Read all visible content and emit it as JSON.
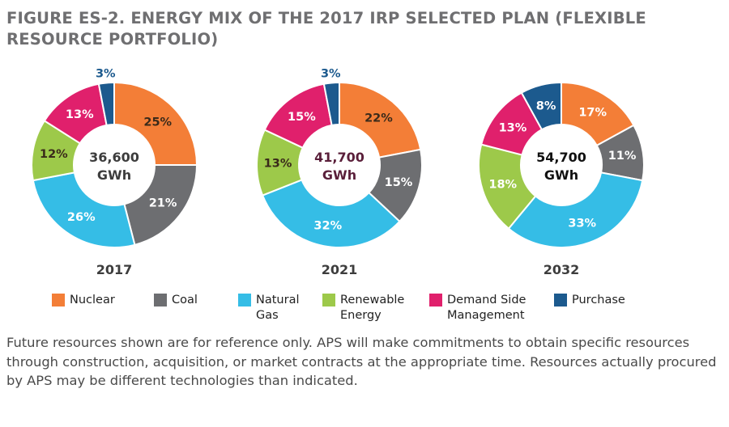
{
  "title": "FIGURE ES-2. ENERGY MIX OF THE 2017 IRP SELECTED PLAN (FLEXIBLE RESOURCE PORTFOLIO)",
  "colors": {
    "nuclear": "#f37e37",
    "coal": "#6d6e71",
    "gas": "#35bde6",
    "renewable": "#9dc94a",
    "dsm": "#e0206c",
    "purchase": "#1c5a8e"
  },
  "chart_data": [
    {
      "type": "pie",
      "title": "2017",
      "center_value": "36,600",
      "center_unit": "GWh",
      "categories": [
        "Nuclear",
        "Coal",
        "Natural Gas",
        "Renewable Energy",
        "Demand Side Management",
        "Purchase"
      ],
      "values": [
        25,
        21,
        26,
        12,
        13,
        3
      ],
      "labels": [
        "25%",
        "21%",
        "26%",
        "12%",
        "13%",
        "3%"
      ]
    },
    {
      "type": "pie",
      "title": "2021",
      "center_value": "41,700",
      "center_unit": "GWh",
      "categories": [
        "Nuclear",
        "Coal",
        "Natural Gas",
        "Renewable Energy",
        "Demand Side Management",
        "Purchase"
      ],
      "values": [
        22,
        15,
        32,
        13,
        15,
        3
      ],
      "labels": [
        "22%",
        "15%",
        "32%",
        "13%",
        "15%",
        "3%"
      ]
    },
    {
      "type": "pie",
      "title": "2032",
      "center_value": "54,700",
      "center_unit": "GWh",
      "categories": [
        "Nuclear",
        "Coal",
        "Natural Gas",
        "Renewable Energy",
        "Demand Side Management",
        "Purchase"
      ],
      "values": [
        17,
        11,
        33,
        18,
        13,
        8
      ],
      "labels": [
        "17%",
        "11%",
        "33%",
        "18%",
        "13%",
        "8%"
      ]
    }
  ],
  "legend": [
    {
      "label": "Nuclear",
      "color": "#f37e37"
    },
    {
      "label": "Coal",
      "color": "#6d6e71"
    },
    {
      "label": "Natural Gas",
      "color": "#35bde6"
    },
    {
      "label": "Renewable Energy",
      "color": "#9dc94a"
    },
    {
      "label": "Demand Side Management",
      "color": "#e0206c"
    },
    {
      "label": "Purchase",
      "color": "#1c5a8e"
    }
  ],
  "footnote": "Future resources shown are for reference only. APS will make commitments to obtain specific resources through construction, acquisition, or market contracts at the appropriate time. Resources actually procured by APS may be different technologies than indicated."
}
